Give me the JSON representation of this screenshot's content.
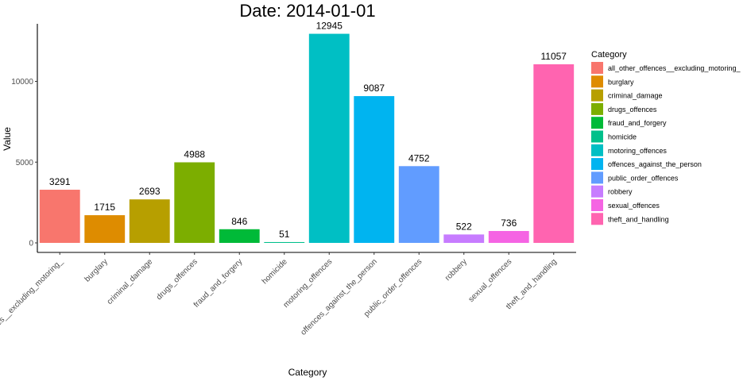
{
  "chart_data": {
    "type": "bar",
    "title": "Date: 2014-01-01",
    "xlabel": "Category",
    "ylabel": "Value",
    "ylim": [
      0,
      13000
    ],
    "yticks": [
      0,
      5000,
      10000
    ],
    "ytick_labels": [
      "0",
      "5000",
      "10000"
    ],
    "grid": false,
    "legend_title": "Category",
    "legend_position": "right",
    "categories": [
      "all_other_offences__excluding_motoring_",
      "burglary",
      "criminal_damage",
      "drugs_offences",
      "fraud_and_forgery",
      "homicide",
      "motoring_offences",
      "offences_against_the_person",
      "public_order_offences",
      "robbery",
      "sexual_offences",
      "theft_and_handling"
    ],
    "values": [
      3291,
      1715,
      2693,
      4988,
      846,
      51,
      12945,
      9087,
      4752,
      522,
      736,
      11057
    ],
    "value_labels": [
      "3291",
      "1715",
      "2693",
      "4988",
      "846",
      "51",
      "12945",
      "9087",
      "4752",
      "522",
      "736",
      "11057"
    ],
    "legend_labels": [
      "all_other_offences__excluding_motoring_",
      "burglary",
      "criminal_damage",
      "drugs_offences",
      "fraud_and_forgery",
      "homicide",
      "motoring_offences",
      "offences_against_the_person",
      "public_order_offences",
      "robbery",
      "sexual_offences",
      "theft_and_handling"
    ],
    "colors": [
      "#F8766D",
      "#DE8C00",
      "#B79F00",
      "#7CAE00",
      "#00BA38",
      "#00C08B",
      "#00BFC4",
      "#00B4F0",
      "#619CFF",
      "#C77CFF",
      "#F564E3",
      "#FF64B0"
    ]
  }
}
